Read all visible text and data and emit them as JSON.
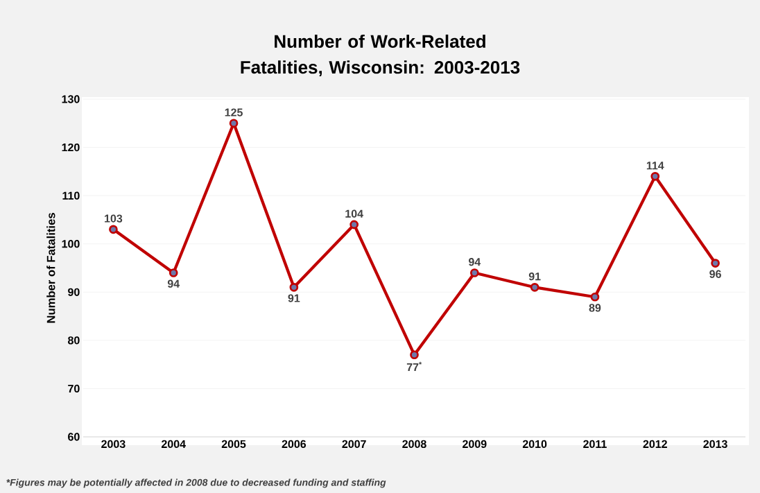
{
  "chart_data": {
    "type": "line",
    "title": "Number of Work-Related Fatalities, Wisconsin: 2003-2013",
    "ylabel": "Number of Fatalities",
    "categories": [
      "2003",
      "2004",
      "2005",
      "2006",
      "2007",
      "2008",
      "2009",
      "2010",
      "2011",
      "2012",
      "2013"
    ],
    "series": [
      {
        "color": "#c00000",
        "values": [
          103,
          94,
          125,
          91,
          104,
          77,
          94,
          91,
          89,
          114,
          96
        ],
        "value_labels": [
          "103",
          "94",
          "125",
          "91",
          "104",
          "77$^{*}$",
          "94",
          "91",
          "89",
          "114",
          "96"
        ]
      }
    ],
    "ylim": [
      60,
      130
    ],
    "yticks": [
      60,
      70,
      80,
      90,
      100,
      110,
      120,
      130
    ],
    "grid": "y",
    "marker": "circle",
    "annotations": [
      "*Figures may be potentially affected in 2008 due to decreased funding and staffing"
    ]
  }
}
